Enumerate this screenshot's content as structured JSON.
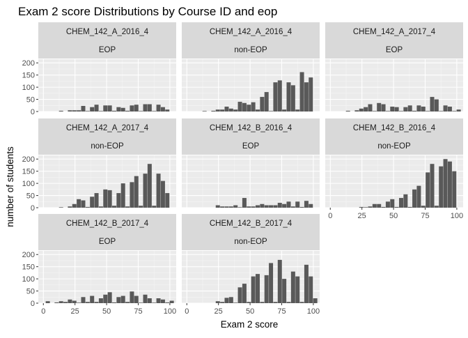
{
  "chart_data": {
    "type": "bar",
    "title": "Exam 2 score Distributions by Course ID and eop",
    "xlabel": "Exam 2 score",
    "ylabel": "number of students",
    "xlim": [
      -4,
      105
    ],
    "ylim": [
      0,
      215
    ],
    "x_ticks": [
      0,
      25,
      50,
      75,
      100
    ],
    "y_ticks": [
      0,
      50,
      100,
      150,
      200
    ],
    "grid": true,
    "bin_centers": [
      0,
      3.5,
      7,
      10.5,
      14,
      17.5,
      21,
      24.5,
      28,
      31.5,
      35,
      38.5,
      42,
      45.5,
      49,
      52.5,
      56,
      59.5,
      63,
      66.5,
      70,
      73.5,
      77,
      80.5,
      84,
      87.5,
      91,
      94.5,
      98,
      101.5
    ],
    "colors": {
      "bar": "#595959",
      "panel_bg": "#ebebeb",
      "grid_major": "#ffffff",
      "strip_bg": "#d9d9d9",
      "text": "#1a1a1a",
      "tick_text": "#4d4d4d"
    },
    "panels": [
      {
        "course": "CHEM_142_A_2016_4",
        "eop": "EOP",
        "values": [
          0,
          0,
          0,
          0,
          3,
          0,
          5,
          5,
          5,
          23,
          2,
          18,
          28,
          2,
          25,
          25,
          3,
          18,
          15,
          3,
          25,
          28,
          2,
          30,
          30,
          2,
          28,
          18,
          8,
          0
        ]
      },
      {
        "course": "CHEM_142_A_2016_4",
        "eop": "non-EOP",
        "values": [
          0,
          0,
          0,
          0,
          2,
          0,
          3,
          8,
          8,
          20,
          12,
          8,
          40,
          35,
          28,
          38,
          8,
          60,
          80,
          2,
          120,
          128,
          8,
          120,
          108,
          8,
          162,
          120,
          140,
          0
        ]
      },
      {
        "course": "CHEM_142_A_2017_4",
        "eop": "EOP",
        "values": [
          0,
          0,
          0,
          0,
          3,
          0,
          5,
          12,
          18,
          30,
          2,
          35,
          30,
          2,
          20,
          18,
          2,
          18,
          25,
          3,
          25,
          20,
          2,
          60,
          50,
          2,
          25,
          20,
          2,
          8
        ]
      },
      {
        "course": "CHEM_142_A_2017_4",
        "eop": "non-EOP",
        "values": [
          0,
          0,
          0,
          0,
          2,
          0,
          5,
          15,
          35,
          30,
          3,
          45,
          60,
          5,
          75,
          72,
          8,
          60,
          100,
          5,
          105,
          130,
          8,
          140,
          180,
          8,
          140,
          110,
          60,
          0
        ]
      },
      {
        "course": "CHEM_142_B_2016_4",
        "eop": "EOP",
        "values": [
          0,
          0,
          0,
          0,
          0,
          0,
          0,
          10,
          5,
          5,
          5,
          10,
          2,
          40,
          5,
          5,
          10,
          15,
          10,
          10,
          10,
          20,
          15,
          25,
          5,
          25,
          3,
          28,
          15,
          0
        ]
      },
      {
        "course": "CHEM_142_B_2016_4",
        "eop": "non-EOP",
        "values": [
          0,
          0,
          0,
          0,
          0,
          0,
          0,
          3,
          2,
          5,
          15,
          15,
          3,
          25,
          35,
          3,
          40,
          55,
          3,
          75,
          90,
          8,
          145,
          180,
          8,
          170,
          200,
          190,
          150,
          0
        ]
      },
      {
        "course": "CHEM_142_B_2017_4",
        "eop": "EOP",
        "values": [
          0,
          8,
          0,
          3,
          8,
          5,
          15,
          10,
          2,
          25,
          5,
          30,
          5,
          20,
          35,
          45,
          3,
          25,
          30,
          5,
          48,
          30,
          2,
          35,
          20,
          2,
          20,
          15,
          3,
          10
        ]
      },
      {
        "course": "CHEM_142_B_2017_4",
        "eop": "non-EOP",
        "values": [
          0,
          0,
          0,
          0,
          0,
          0,
          0,
          8,
          5,
          22,
          25,
          2,
          65,
          80,
          5,
          110,
          120,
          5,
          115,
          165,
          5,
          178,
          100,
          5,
          130,
          110,
          5,
          158,
          110,
          20
        ]
      }
    ]
  }
}
